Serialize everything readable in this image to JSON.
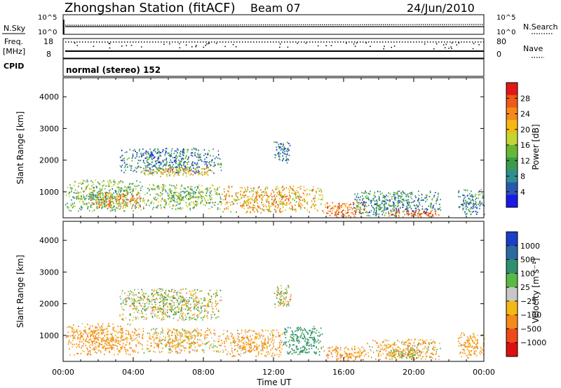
{
  "header": {
    "station": "Zhongshan Station (fitACF)",
    "beam": "Beam 07",
    "date": "24/Jun/2010"
  },
  "strips": {
    "nsky_label": "N.Sky",
    "nsky_ticks": [
      "10^5",
      "10^0"
    ],
    "nsearch_label": "N.Search",
    "nsearch_ticks": [
      "10^5",
      "10^0"
    ],
    "freq_label": "Freq.",
    "freq_unit": "[MHz]",
    "freq_ticks": [
      "18",
      "8"
    ],
    "nave_label": "Nave",
    "nave_ticks": [
      "80",
      "0"
    ],
    "cpid_label": "CPID",
    "cpid_text": "normal (stereo) 152"
  },
  "chart_data": [
    {
      "type": "heatmap",
      "name": "Power panel",
      "ylabel": "Slant Range [km]",
      "xlabel": "",
      "ylim": [
        180,
        4600
      ],
      "yticks": [
        1000,
        2000,
        3000,
        4000
      ],
      "colorbar": {
        "label": "Power [dB]",
        "range": [
          0,
          32
        ],
        "ticks": [
          "4",
          "8",
          "12",
          "16",
          "20",
          "24",
          "28"
        ],
        "colors": [
          "#1a1ae6",
          "#2a57b0",
          "#2e8f8f",
          "#3c9a4a",
          "#66b832",
          "#c4d431",
          "#f5b814",
          "#f58a1a",
          "#ef5a16",
          "#e01818"
        ]
      },
      "regions": [
        {
          "t": [
            0.1,
            4.5
          ],
          "r": [
            400,
            1400
          ],
          "v": 13
        },
        {
          "t": [
            1.5,
            4.5
          ],
          "r": [
            500,
            1000
          ],
          "v": 24
        },
        {
          "t": [
            4.5,
            9.0
          ],
          "r": [
            450,
            1250
          ],
          "v": 14
        },
        {
          "t": [
            3.2,
            9.0
          ],
          "r": [
            1600,
            2400
          ],
          "v": 8
        },
        {
          "t": [
            4.5,
            8.5
          ],
          "r": [
            1500,
            1800
          ],
          "v": 20
        },
        {
          "t": [
            9.0,
            14.8
          ],
          "r": [
            350,
            1200
          ],
          "v": 21
        },
        {
          "t": [
            12.0,
            13.0
          ],
          "r": [
            1900,
            2600
          ],
          "v": 7
        },
        {
          "t": [
            14.8,
            17.3
          ],
          "r": [
            200,
            700
          ],
          "v": 25
        },
        {
          "t": [
            16.5,
            21.5
          ],
          "r": [
            250,
            1050
          ],
          "v": 9
        },
        {
          "t": [
            18.5,
            21.5
          ],
          "r": [
            220,
            450
          ],
          "v": 27
        },
        {
          "t": [
            22.5,
            24.0
          ],
          "r": [
            300,
            1100
          ],
          "v": 9
        }
      ]
    },
    {
      "type": "heatmap",
      "name": "Velocity panel",
      "ylabel": "Slant Range [km]",
      "xlabel": "Time UT",
      "xlim": [
        0,
        24
      ],
      "xticks": [
        "00:00",
        "04:00",
        "08:00",
        "12:00",
        "16:00",
        "20:00",
        "00:00"
      ],
      "ylim": [
        180,
        4600
      ],
      "yticks": [
        1000,
        2000,
        3000,
        4000
      ],
      "colorbar": {
        "label": "Velocity [m s⁻¹]",
        "ticks": [
          "1000",
          "500",
          "100",
          "25",
          "−25",
          "−100",
          "−500",
          "−1000"
        ],
        "colors": [
          "#1b3ec7",
          "#2a6aa0",
          "#2f8f70",
          "#5ab845",
          "#c7c7c7",
          "#f5b814",
          "#f58a1a",
          "#ee4a18",
          "#dd1010"
        ]
      },
      "regions": [
        {
          "t": [
            0.1,
            4.5
          ],
          "r": [
            400,
            1400
          ],
          "v": -150
        },
        {
          "t": [
            4.5,
            9.0
          ],
          "r": [
            450,
            1250
          ],
          "v": -80
        },
        {
          "t": [
            3.2,
            9.0
          ],
          "r": [
            1500,
            2500
          ],
          "v": 0
        },
        {
          "t": [
            9.0,
            12.5
          ],
          "r": [
            350,
            1200
          ],
          "v": -120
        },
        {
          "t": [
            12.5,
            14.8
          ],
          "r": [
            400,
            1300
          ],
          "v": 200
        },
        {
          "t": [
            12.0,
            13.0
          ],
          "r": [
            1900,
            2600
          ],
          "v": 0
        },
        {
          "t": [
            14.8,
            17.3
          ],
          "r": [
            200,
            700
          ],
          "v": -150
        },
        {
          "t": [
            17.3,
            21.5
          ],
          "r": [
            250,
            900
          ],
          "v": -100
        },
        {
          "t": [
            18.5,
            20.5
          ],
          "r": [
            300,
            600
          ],
          "v": 0
        },
        {
          "t": [
            22.5,
            24.0
          ],
          "r": [
            300,
            1100
          ],
          "v": -150
        }
      ]
    }
  ]
}
